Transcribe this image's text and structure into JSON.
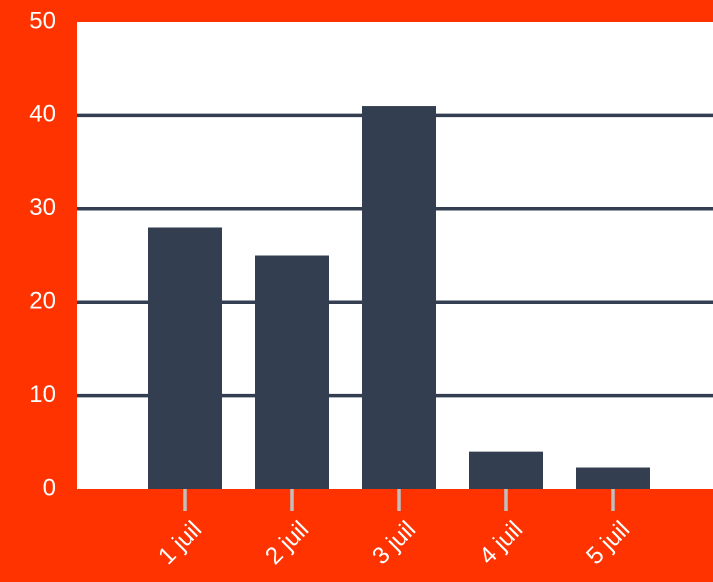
{
  "chart_data": {
    "type": "bar",
    "categories": [
      "1 juil",
      "2 juil",
      "3 juil",
      "4 juil",
      "5 juil"
    ],
    "values": [
      28,
      25,
      41,
      4,
      2.3
    ],
    "ylim": [
      0,
      50
    ],
    "yticks": [
      0,
      10,
      20,
      30,
      40,
      50
    ],
    "grid": true,
    "legend": "none",
    "colors": {
      "background": "#ff3300",
      "plot": "#ffffff",
      "bar": "#333f50",
      "grid": "#333f50",
      "tick_mark": "#bfbfbf",
      "text": "#ffffff"
    }
  }
}
